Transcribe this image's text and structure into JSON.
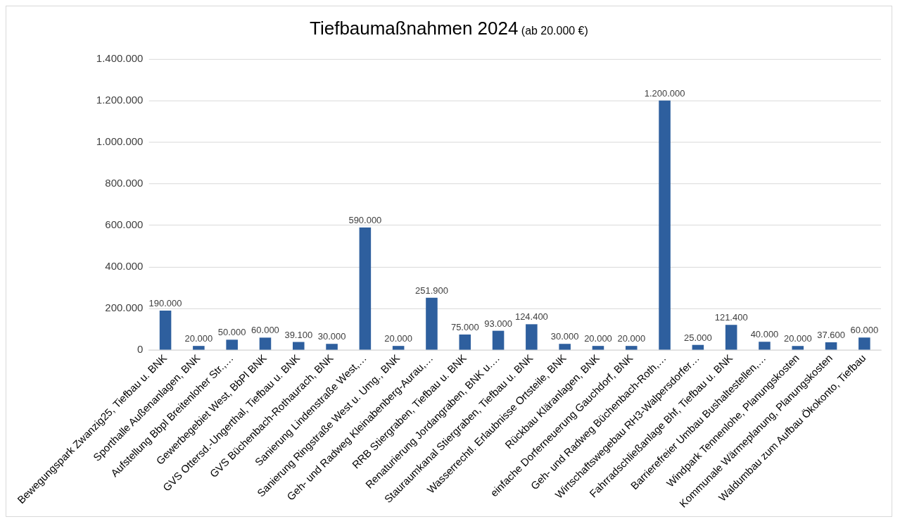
{
  "chart_data": {
    "type": "bar",
    "title": "Tiefbaumaßnahmen 2024",
    "subtitle": "(ab 20.000 €)",
    "categories": [
      "Bewegungspark Zwanzig25, Tiefbau u. BNK",
      "Sporthalle Außenanlagen, BNK",
      "Aufstellung Bbpl Breitenloher Str.,…",
      "Gewerbegebiet West, BbPl BNK",
      "GVS Ottersd.-Ungerthal, Tiefbau u. BNK",
      "GVS Büchenbach-Rothaurach, BNK",
      "Sanierung Lindenstraße West,…",
      "Sanierung Ringstraße West u. Umg., BNK",
      "Geh- und Radweg Kleinabenberg-Aurau,…",
      "RRB Stiergraben, Tiefbau u. BNK",
      "Renaturierung Jordangraben, BNK u.…",
      "Stauraumkanal Stiergraben, Tiefbau u. BNK",
      "Wasserrechtl. Erlaubnisse Ortsteile, BNK",
      "Rückbau Kläranlagen, BNK",
      "einfache Dorferneuerung Gauchdorf, BNK",
      "Geh- und Radweg Büchenbach-Roth,…",
      "Wirtschaftswegebau RH3-Walpersdorfer…",
      "Fahrradschließanlage Bhf, Tiefbau u. BNK",
      "Barrierefreier Umbau Bushaltestellen,…",
      "Windpark Tennenlohe, Planungskosten",
      "Kommunale Wärmeplanung, Planungskosten",
      "Waldumbau zum Aufbau Ökokonto, Tiefbau"
    ],
    "values": [
      190000,
      20000,
      50000,
      60000,
      39100,
      30000,
      590000,
      20000,
      251900,
      75000,
      93000,
      124400,
      30000,
      20000,
      20000,
      1200000,
      25000,
      121400,
      40000,
      20000,
      37600,
      60000
    ],
    "value_labels": [
      "190.000",
      "20.000",
      "50.000",
      "60.000",
      "39.100",
      "30.000",
      "590.000",
      "20.000",
      "251.900",
      "75.000",
      "93.000",
      "124.400",
      "30.000",
      "20.000",
      "20.000",
      "1.200.000",
      "25.000",
      "121.400",
      "40.000",
      "20.000",
      "37.600",
      "60.000"
    ],
    "color": "#2e5f9e",
    "ylim": [
      0,
      1400000
    ],
    "yticks": [
      {
        "value": 0,
        "label": "0"
      },
      {
        "value": 200000,
        "label": "200.000"
      },
      {
        "value": 400000,
        "label": "400.000"
      },
      {
        "value": 600000,
        "label": "600.000"
      },
      {
        "value": 800000,
        "label": "800.000"
      },
      {
        "value": 1000000,
        "label": "1.000.000"
      },
      {
        "value": 1200000,
        "label": "1.200.000"
      },
      {
        "value": 1400000,
        "label": "1.400.000"
      }
    ],
    "grid": "y",
    "legend": false
  }
}
